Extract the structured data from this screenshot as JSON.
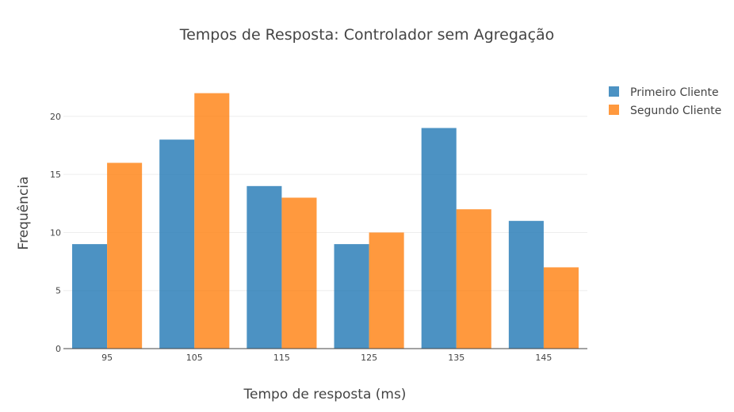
{
  "chart_data": {
    "type": "bar",
    "title": "Tempos de Resposta: Controlador sem Agregação",
    "xlabel": "Tempo de resposta (ms)",
    "ylabel": "Frequência",
    "categories": [
      "95",
      "105",
      "115",
      "125",
      "135",
      "145"
    ],
    "series": [
      {
        "name": "Primeiro Cliente",
        "color": "#1f77b4",
        "values": [
          9,
          18,
          14,
          9,
          19,
          11
        ]
      },
      {
        "name": "Segundo Cliente",
        "color": "#ff7f0e",
        "values": [
          16,
          22,
          13,
          10,
          12,
          7
        ]
      }
    ],
    "ylim": [
      0,
      23.2
    ],
    "yticks": [
      0,
      5,
      10,
      15,
      20
    ],
    "grid": true,
    "legend": "top-right"
  }
}
